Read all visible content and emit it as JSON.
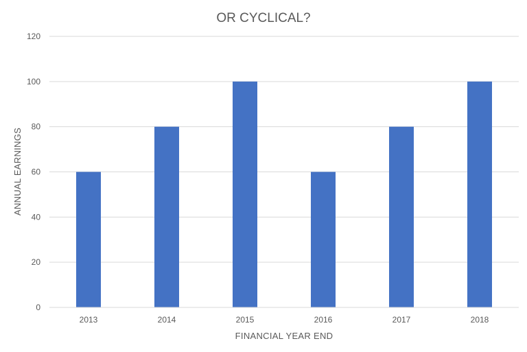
{
  "chart_data": {
    "type": "bar",
    "title": "OR CYCLICAL?",
    "xlabel": "FINANCIAL YEAR END",
    "ylabel": "ANNUAL EARNINGS",
    "categories": [
      "2013",
      "2014",
      "2015",
      "2016",
      "2017",
      "2018"
    ],
    "values": [
      60,
      80,
      100,
      60,
      80,
      100
    ],
    "ylim": [
      0,
      120
    ],
    "yticks": [
      "0",
      "20",
      "40",
      "60",
      "80",
      "100",
      "120"
    ],
    "grid": true,
    "legend": "none",
    "colors": {
      "bar": "#4472C4",
      "grid": "#D9D9D9",
      "text": "#595959"
    }
  }
}
